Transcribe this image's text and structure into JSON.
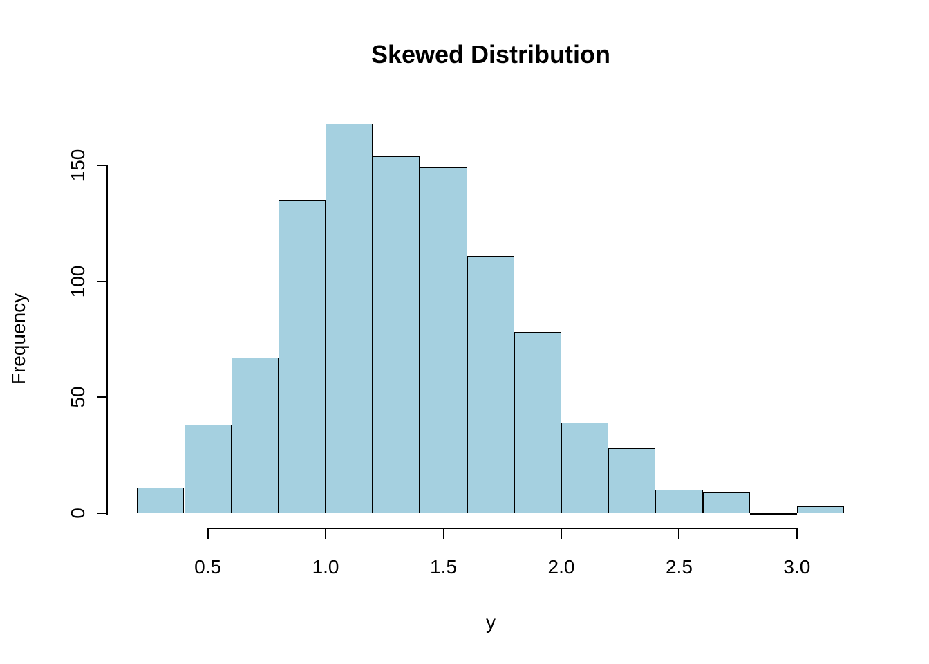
{
  "chart_data": {
    "type": "bar",
    "subtype": "histogram",
    "title": "Skewed Distribution",
    "xlabel": "y",
    "ylabel": "Frequency",
    "bin_edges": [
      0.2,
      0.4,
      0.6,
      0.8,
      1.0,
      1.2,
      1.4,
      1.6,
      1.8,
      2.0,
      2.2,
      2.4,
      2.6,
      2.8,
      3.0,
      3.2
    ],
    "counts": [
      11,
      38,
      67,
      135,
      168,
      154,
      149,
      111,
      78,
      39,
      28,
      10,
      9,
      0,
      3
    ],
    "x_tick_values": [
      0.5,
      1.0,
      1.5,
      2.0,
      2.5,
      3.0
    ],
    "x_tick_labels": [
      "0.5",
      "1.0",
      "1.5",
      "2.0",
      "2.5",
      "3.0"
    ],
    "y_tick_values": [
      0,
      50,
      100,
      150
    ],
    "y_tick_labels": [
      "0",
      "50",
      "100",
      "150"
    ],
    "xlim": [
      0.2,
      3.2
    ],
    "ylim": [
      0,
      168
    ],
    "grid": false,
    "legend": null,
    "bar_fill": "#A5D0E0",
    "bar_border": "#000000",
    "axis_color": "#000000",
    "text_color": "#000000",
    "background": "#FFFFFF"
  }
}
